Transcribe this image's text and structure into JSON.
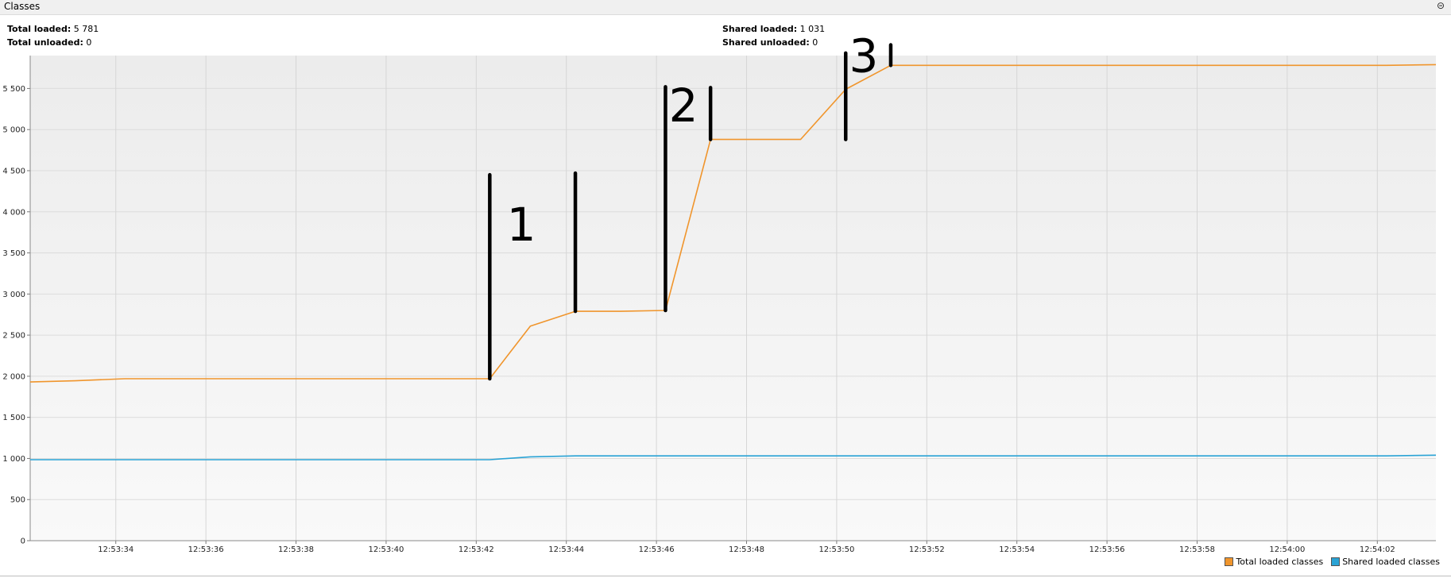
{
  "window": {
    "title": "Classes"
  },
  "stats": {
    "total_loaded_label": "Total loaded:",
    "total_loaded_value": "5 781",
    "total_unloaded_label": "Total unloaded:",
    "total_unloaded_value": "0",
    "shared_loaded_label": "Shared loaded:",
    "shared_loaded_value": "1 031",
    "shared_unloaded_label": "Shared unloaded:",
    "shared_unloaded_value": "0"
  },
  "legend": {
    "total_label": "Total loaded classes",
    "shared_label": "Shared loaded classes"
  },
  "colors": {
    "total": "#f0952c",
    "shared": "#2aa3d5",
    "annotation": "#000000"
  },
  "chart_data": {
    "type": "line",
    "ylim": [
      0,
      5900
    ],
    "yticks": [
      0,
      500,
      1000,
      1500,
      2000,
      2500,
      3000,
      3500,
      4000,
      4500,
      5000,
      5500
    ],
    "ytick_labels": [
      "0",
      "500",
      "1 000",
      "1 500",
      "2 000",
      "2 500",
      "3 000",
      "3 500",
      "4 000",
      "4 500",
      "5 000",
      "5 500"
    ],
    "xlim": [
      -1.9,
      29.3
    ],
    "xticks": [
      0,
      2,
      4,
      6,
      8,
      10,
      12,
      14,
      16,
      18,
      20,
      22,
      24,
      26,
      28
    ],
    "xtick_labels": [
      "12:53:34",
      "12:53:36",
      "12:53:38",
      "12:53:40",
      "12:53:42",
      "12:53:44",
      "12:53:46",
      "12:53:48",
      "12:53:50",
      "12:53:52",
      "12:53:54",
      "12:53:56",
      "12:53:58",
      "12:54:00",
      "12:54:02"
    ],
    "series": [
      {
        "name": "Total loaded classes",
        "x": [
          -1.9,
          -0.9,
          0.2,
          8.3,
          9.2,
          10.2,
          11.2,
          12.2,
          13.2,
          14.2,
          15.2,
          16.2,
          17.2,
          18.2,
          19.2,
          20.2,
          21.2,
          22.2,
          23.2,
          24.2,
          25.2,
          26.2,
          27.2,
          28.2,
          29.3
        ],
        "y": [
          1930,
          1945,
          1970,
          1970,
          2610,
          2790,
          2790,
          2800,
          4880,
          4880,
          4880,
          5490,
          5781,
          5781,
          5781,
          5781,
          5781,
          5781,
          5781,
          5781,
          5781,
          5781,
          5781,
          5781,
          5790
        ]
      },
      {
        "name": "Shared loaded classes",
        "x": [
          -1.9,
          8.3,
          9.2,
          10.2,
          28.2,
          29.3
        ],
        "y": [
          985,
          985,
          1020,
          1031,
          1031,
          1040
        ]
      }
    ],
    "annotations": [
      {
        "x": 8.3,
        "y_from": 1970,
        "y_to": 4450
      },
      {
        "x": 10.2,
        "y_from": 2790,
        "y_to": 4470
      },
      {
        "x": 12.2,
        "y_from": 2800,
        "y_to": 5520
      },
      {
        "x": 13.2,
        "y_from": 4880,
        "y_to": 5510
      },
      {
        "x": 16.2,
        "y_from": 4880,
        "y_to": 5930
      },
      {
        "x": 17.2,
        "y_from": 5781,
        "y_to": 6030
      }
    ],
    "annotation_labels": [
      {
        "text": "1",
        "x": 9.0,
        "y": 3650
      },
      {
        "text": "2",
        "x": 12.6,
        "y": 5100
      },
      {
        "text": "3",
        "x": 16.6,
        "y": 5700
      }
    ]
  }
}
